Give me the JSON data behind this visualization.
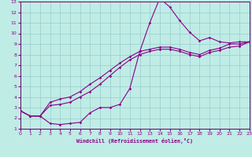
{
  "xlabel": "Windchill (Refroidissement éolien,°C)",
  "xlim": [
    0,
    23
  ],
  "ylim": [
    1,
    13
  ],
  "xticks": [
    0,
    1,
    2,
    3,
    4,
    5,
    6,
    7,
    8,
    9,
    10,
    11,
    12,
    13,
    14,
    15,
    16,
    17,
    18,
    19,
    20,
    21,
    22,
    23
  ],
  "yticks": [
    1,
    2,
    3,
    4,
    5,
    6,
    7,
    8,
    9,
    10,
    11,
    12,
    13
  ],
  "bg_color": "#c0ece6",
  "grid_color": "#99cccc",
  "line_color": "#880088",
  "spine_color": "#660066",
  "line1_x": [
    0,
    1,
    2,
    3,
    4,
    5,
    6,
    7,
    8,
    9,
    10,
    11,
    12,
    13,
    14,
    15,
    16,
    17,
    18,
    19,
    20,
    21,
    22,
    23
  ],
  "line1_y": [
    2.7,
    2.2,
    2.2,
    1.5,
    1.4,
    1.5,
    1.6,
    2.5,
    3.0,
    3.0,
    3.3,
    4.8,
    8.3,
    11.0,
    13.3,
    12.5,
    11.2,
    10.1,
    9.3,
    9.6,
    9.2,
    9.1,
    9.2,
    9.2
  ],
  "line2_x": [
    0,
    1,
    2,
    3,
    4,
    5,
    6,
    7,
    8,
    9,
    10,
    11,
    12,
    13,
    14,
    15,
    16,
    17,
    18,
    19,
    20,
    21,
    22,
    23
  ],
  "line2_y": [
    2.7,
    2.2,
    2.2,
    3.2,
    3.3,
    3.5,
    4.0,
    4.5,
    5.2,
    6.0,
    6.8,
    7.5,
    8.0,
    8.3,
    8.5,
    8.5,
    8.3,
    8.0,
    7.8,
    8.2,
    8.4,
    8.7,
    8.8,
    9.2
  ],
  "line3_x": [
    0,
    1,
    2,
    3,
    4,
    5,
    6,
    7,
    8,
    9,
    10,
    11,
    12,
    13,
    14,
    15,
    16,
    17,
    18,
    19,
    20,
    21,
    22,
    23
  ],
  "line3_y": [
    2.7,
    2.2,
    2.2,
    3.5,
    3.8,
    4.0,
    4.5,
    5.2,
    5.8,
    6.5,
    7.2,
    7.8,
    8.3,
    8.5,
    8.7,
    8.7,
    8.5,
    8.2,
    8.0,
    8.4,
    8.6,
    9.0,
    9.0,
    9.2
  ]
}
